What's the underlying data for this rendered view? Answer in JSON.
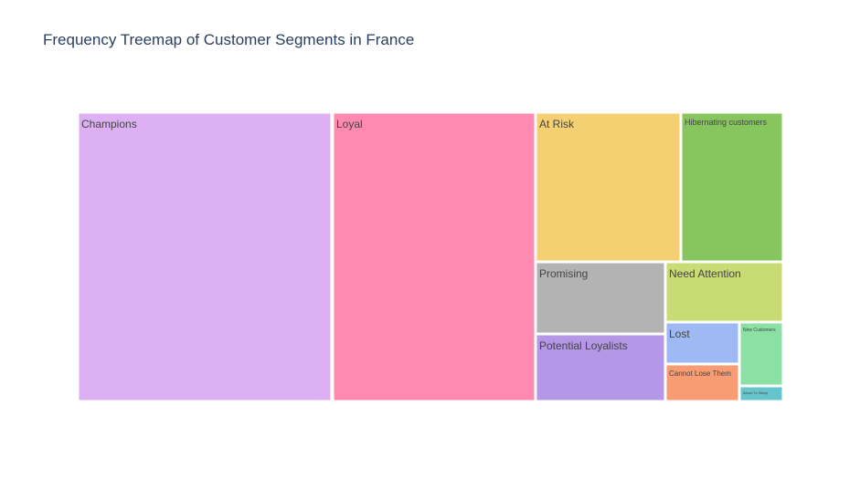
{
  "chart_data": {
    "type": "treemap",
    "title": "Frequency Treemap of Customer Segments in France",
    "segments": [
      {
        "label": "Champions",
        "value": 27.7,
        "color": "#dcb0f2"
      },
      {
        "label": "Loyal",
        "value": 22.0,
        "color": "#ff8ab1"
      },
      {
        "label": "At Risk",
        "value": 10.2,
        "color": "#f4d073"
      },
      {
        "label": "Hibernating customers",
        "value": 7.2,
        "color": "#87c55f"
      },
      {
        "label": "Promising",
        "value": 5.3,
        "color": "#b3b3b3"
      },
      {
        "label": "Potential Loyalists",
        "value": 4.9,
        "color": "#b497e7"
      },
      {
        "label": "Need Attention",
        "value": 4.1,
        "color": "#c9db74"
      },
      {
        "label": "Lost",
        "value": 2.0,
        "color": "#9eb9f3"
      },
      {
        "label": "Cannot Lose Them",
        "value": 1.5,
        "color": "#f89c74"
      },
      {
        "label": "New Customers",
        "value": 1.4,
        "color": "#8be0a4"
      },
      {
        "label": "About To Sleep",
        "value": 0.3,
        "color": "#66c5cc"
      }
    ]
  }
}
